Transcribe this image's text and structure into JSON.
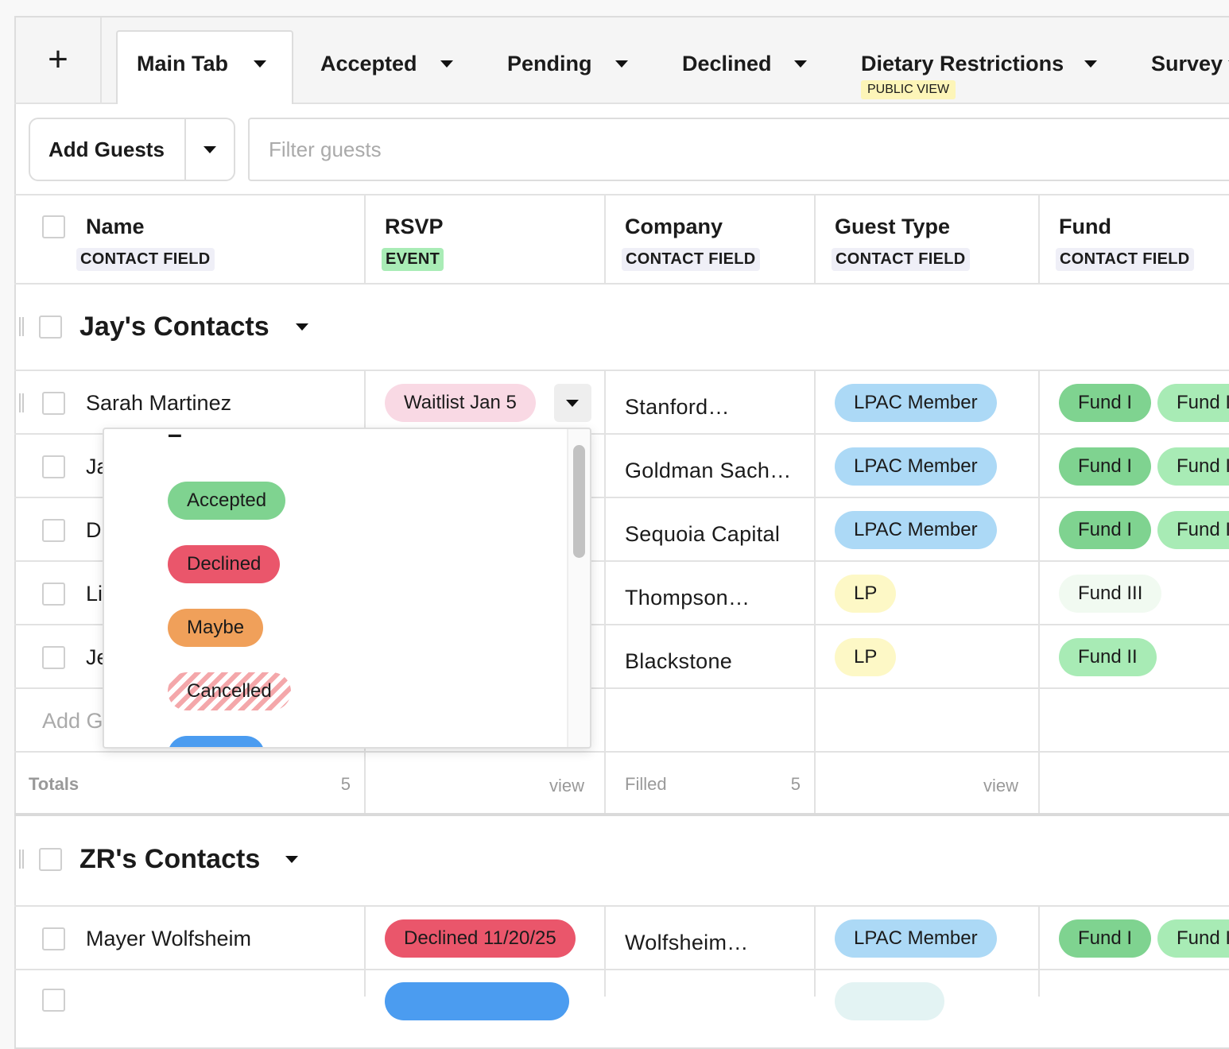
{
  "tabs": {
    "add": "+",
    "items": [
      {
        "label": "Main Tab"
      },
      {
        "label": "Accepted"
      },
      {
        "label": "Pending"
      },
      {
        "label": "Declined"
      },
      {
        "label": "Dietary Restrictions",
        "badge": "PUBLIC VIEW"
      },
      {
        "label": "Survey"
      }
    ]
  },
  "toolbar": {
    "add_button": "Add Guests",
    "filter_placeholder": "Filter guests"
  },
  "columns": [
    {
      "title": "Name",
      "badge": "CONTACT FIELD",
      "badge_color": "#efeff7"
    },
    {
      "title": "RSVP",
      "badge": "EVENT",
      "badge_color": "#a9ecb6"
    },
    {
      "title": "Company",
      "badge": "CONTACT FIELD",
      "badge_color": "#efeff7"
    },
    {
      "title": "Guest Type",
      "badge": "CONTACT FIELD",
      "badge_color": "#efeff7"
    },
    {
      "title": "Fund",
      "badge": "CONTACT FIELD",
      "badge_color": "#efeff7"
    }
  ],
  "groups": [
    {
      "title": "Jay's Contacts",
      "rows": [
        {
          "name": "Sarah Martinez",
          "rsvp": {
            "text": "Waitlist Jan 5",
            "color": "#f9d9e4"
          },
          "company": "Stanford…",
          "guest_type": {
            "text": "LPAC Member",
            "color": "#acd9f6"
          },
          "funds": [
            {
              "text": "Fund I",
              "color": "#7fd390"
            },
            {
              "text": "Fund I",
              "color": "#a8ebb5"
            }
          ]
        },
        {
          "name": "Ja",
          "company": "Goldman Sach…",
          "guest_type": {
            "text": "LPAC Member",
            "color": "#acd9f6"
          },
          "funds": [
            {
              "text": "Fund I",
              "color": "#7fd390"
            },
            {
              "text": "Fund I",
              "color": "#a8ebb5"
            }
          ]
        },
        {
          "name": "D",
          "company": "Sequoia Capital",
          "guest_type": {
            "text": "LPAC Member",
            "color": "#acd9f6"
          },
          "funds": [
            {
              "text": "Fund I",
              "color": "#7fd390"
            },
            {
              "text": "Fund I",
              "color": "#a8ebb5"
            }
          ]
        },
        {
          "name": "Li",
          "company": "Thompson…",
          "guest_type": {
            "text": "LP",
            "color": "#fdf8c6"
          },
          "funds": [
            {
              "text": "Fund III",
              "color": "#f1faf1"
            }
          ]
        },
        {
          "name": "Je",
          "company": "Blackstone",
          "guest_type": {
            "text": "LP",
            "color": "#fdf8c6"
          },
          "funds": [
            {
              "text": "Fund II",
              "color": "#a8ebb5"
            }
          ]
        }
      ],
      "add_row": "Add G",
      "totals": {
        "label": "Totals",
        "count": 5,
        "rsvp": "view",
        "company_label": "Filled",
        "company_count": 5,
        "guest_type": "view"
      }
    },
    {
      "title": "ZR's Contacts",
      "rows": [
        {
          "name": "Mayer Wolfsheim",
          "rsvp": {
            "text": "Declined 11/20/25",
            "color": "#ea566b"
          },
          "company": "Wolfsheim…",
          "guest_type": {
            "text": "LPAC Member",
            "color": "#acd9f6"
          },
          "funds": [
            {
              "text": "Fund I",
              "color": "#7fd390"
            },
            {
              "text": "Fund I",
              "color": "#a8ebb5"
            }
          ]
        }
      ]
    }
  ],
  "dropdown": {
    "options": [
      {
        "text": "–"
      },
      {
        "text": "Accepted",
        "color": "#7fd390"
      },
      {
        "text": "Declined",
        "color": "#ea566b"
      },
      {
        "text": "Maybe",
        "color": "#f0a05a"
      },
      {
        "text": "Cancelled",
        "color": "#f4a7aa",
        "pattern": "striped"
      }
    ]
  }
}
